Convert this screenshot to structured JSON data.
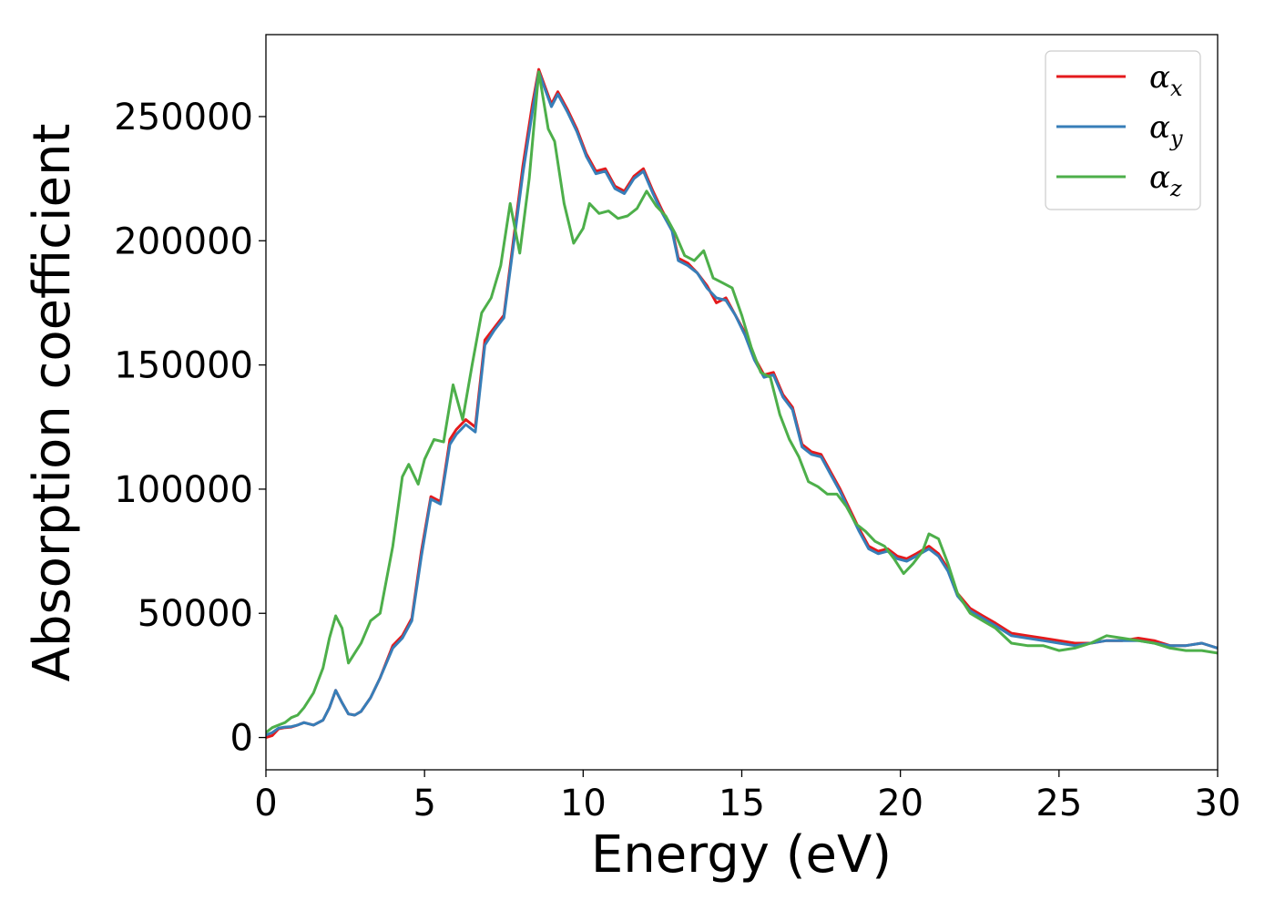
{
  "chart_data": {
    "type": "line",
    "xlabel": "Energy (eV)",
    "ylabel": "Absorption coefficient",
    "xlim": [
      0,
      30
    ],
    "ylim": [
      -13000,
      283000
    ],
    "xticks": [
      0,
      5,
      10,
      15,
      20,
      25,
      30
    ],
    "xtick_labels": [
      "0",
      "5",
      "10",
      "15",
      "20",
      "25",
      "30"
    ],
    "yticks": [
      0,
      50000,
      100000,
      150000,
      200000,
      250000
    ],
    "ytick_labels": [
      "0",
      "50000",
      "100000",
      "150000",
      "200000",
      "250000"
    ],
    "grid": false,
    "legend_position": "top-right",
    "series": [
      {
        "name": "α",
        "subscript": "x",
        "color": "#e41a1c",
        "x": [
          0,
          0.2,
          0.4,
          0.6,
          0.8,
          1.0,
          1.2,
          1.5,
          1.8,
          2.0,
          2.2,
          2.4,
          2.6,
          2.8,
          3.0,
          3.3,
          3.6,
          4.0,
          4.3,
          4.6,
          4.9,
          5.2,
          5.5,
          5.8,
          6.0,
          6.3,
          6.6,
          6.9,
          7.2,
          7.5,
          7.8,
          8.1,
          8.4,
          8.6,
          8.8,
          9.0,
          9.2,
          9.5,
          9.8,
          10.1,
          10.4,
          10.7,
          11.0,
          11.3,
          11.6,
          11.9,
          12.2,
          12.5,
          12.8,
          13.0,
          13.3,
          13.6,
          13.9,
          14.2,
          14.5,
          14.8,
          15.1,
          15.4,
          15.7,
          16.0,
          16.3,
          16.6,
          16.9,
          17.2,
          17.5,
          17.8,
          18.1,
          18.4,
          18.7,
          19.0,
          19.3,
          19.6,
          19.9,
          20.2,
          20.5,
          20.9,
          21.2,
          21.5,
          21.8,
          22.2,
          22.6,
          23.0,
          23.5,
          24.0,
          24.5,
          25.0,
          25.5,
          26.0,
          26.5,
          27.0,
          27.5,
          28.0,
          28.5,
          29.0,
          29.5,
          30.0
        ],
        "y": [
          0,
          800,
          3500,
          4000,
          4200,
          5000,
          6000,
          5000,
          7000,
          12000,
          19000,
          14000,
          9500,
          9000,
          10500,
          16000,
          24000,
          37000,
          41000,
          48000,
          75000,
          97000,
          95000,
          120000,
          124000,
          128000,
          125000,
          160000,
          165000,
          170000,
          200000,
          230000,
          255000,
          269000,
          262000,
          255000,
          260000,
          253000,
          245000,
          235000,
          228000,
          229000,
          222000,
          220000,
          226000,
          229000,
          220000,
          212000,
          205000,
          193000,
          191000,
          187000,
          182000,
          175000,
          177000,
          170000,
          163000,
          153000,
          146000,
          147000,
          138000,
          133000,
          118000,
          115000,
          114000,
          107000,
          100000,
          92000,
          84000,
          77000,
          75000,
          76000,
          73000,
          72000,
          74000,
          77000,
          74000,
          68000,
          58000,
          52000,
          49000,
          46000,
          42000,
          41000,
          40000,
          39000,
          38000,
          38000,
          39000,
          39000,
          40000,
          39000,
          37000,
          37000,
          38000,
          36000
        ]
      },
      {
        "name": "α",
        "subscript": "y",
        "color": "#377eb8",
        "x": [
          0,
          0.2,
          0.4,
          0.6,
          0.8,
          1.0,
          1.2,
          1.5,
          1.8,
          2.0,
          2.2,
          2.4,
          2.6,
          2.8,
          3.0,
          3.3,
          3.6,
          4.0,
          4.3,
          4.6,
          4.9,
          5.2,
          5.5,
          5.8,
          6.0,
          6.3,
          6.6,
          6.9,
          7.2,
          7.5,
          7.8,
          8.1,
          8.4,
          8.6,
          8.8,
          9.0,
          9.2,
          9.5,
          9.8,
          10.1,
          10.4,
          10.7,
          11.0,
          11.3,
          11.6,
          11.9,
          12.2,
          12.5,
          12.8,
          13.0,
          13.3,
          13.6,
          13.9,
          14.2,
          14.5,
          14.8,
          15.1,
          15.4,
          15.7,
          16.0,
          16.3,
          16.6,
          16.9,
          17.2,
          17.5,
          17.8,
          18.1,
          18.4,
          18.7,
          19.0,
          19.3,
          19.6,
          19.9,
          20.2,
          20.5,
          20.9,
          21.2,
          21.5,
          21.8,
          22.2,
          22.6,
          23.0,
          23.5,
          24.0,
          24.5,
          25.0,
          25.5,
          26.0,
          26.5,
          27.0,
          27.5,
          28.0,
          28.5,
          29.0,
          29.5,
          30.0
        ],
        "y": [
          1000,
          2000,
          3800,
          4200,
          4400,
          5000,
          6000,
          5000,
          7000,
          12000,
          19000,
          14000,
          9500,
          9000,
          10500,
          16000,
          24000,
          36000,
          40000,
          47000,
          73000,
          96000,
          94000,
          118000,
          122000,
          126000,
          123000,
          158000,
          164000,
          169000,
          198000,
          227000,
          252000,
          268000,
          261000,
          254000,
          259000,
          252000,
          244000,
          234000,
          227000,
          228000,
          221000,
          219000,
          225000,
          228000,
          219000,
          211000,
          204000,
          192000,
          190000,
          187000,
          181000,
          177000,
          176000,
          170000,
          162000,
          152000,
          145000,
          146000,
          137000,
          132000,
          117000,
          114000,
          113000,
          106000,
          99000,
          91000,
          83000,
          76000,
          74000,
          75000,
          72000,
          71000,
          73000,
          76000,
          73000,
          67000,
          57000,
          51000,
          48000,
          45000,
          41000,
          40000,
          39000,
          38000,
          37000,
          38000,
          39000,
          39000,
          39000,
          38000,
          37000,
          37000,
          38000,
          36000
        ]
      },
      {
        "name": "α",
        "subscript": "z",
        "color": "#4daf4a",
        "x": [
          0,
          0.2,
          0.4,
          0.6,
          0.8,
          1.0,
          1.2,
          1.5,
          1.8,
          2.0,
          2.2,
          2.4,
          2.6,
          2.8,
          3.0,
          3.3,
          3.6,
          4.0,
          4.3,
          4.5,
          4.8,
          5.0,
          5.3,
          5.6,
          5.9,
          6.2,
          6.5,
          6.8,
          7.1,
          7.4,
          7.7,
          8.0,
          8.3,
          8.6,
          8.9,
          9.1,
          9.4,
          9.7,
          10.0,
          10.2,
          10.5,
          10.8,
          11.1,
          11.4,
          11.7,
          12.0,
          12.3,
          12.6,
          12.9,
          13.2,
          13.5,
          13.8,
          14.1,
          14.4,
          14.7,
          15.0,
          15.3,
          15.6,
          15.9,
          16.2,
          16.5,
          16.8,
          17.1,
          17.4,
          17.7,
          18.0,
          18.3,
          18.6,
          18.9,
          19.2,
          19.5,
          19.8,
          20.1,
          20.4,
          20.7,
          20.9,
          21.2,
          21.5,
          21.8,
          22.2,
          22.6,
          23.0,
          23.5,
          24.0,
          24.5,
          25.0,
          25.5,
          26.0,
          26.5,
          27.0,
          27.5,
          28.0,
          28.5,
          29.0,
          29.5,
          30.0
        ],
        "y": [
          2000,
          4000,
          5000,
          6000,
          8000,
          9000,
          12000,
          18000,
          28000,
          40000,
          49000,
          44000,
          30000,
          34000,
          38000,
          47000,
          50000,
          77000,
          105000,
          110000,
          102000,
          112000,
          120000,
          119000,
          142000,
          128000,
          150000,
          171000,
          177000,
          190000,
          215000,
          195000,
          225000,
          268000,
          245000,
          240000,
          215000,
          199000,
          205000,
          215000,
          211000,
          212000,
          209000,
          210000,
          213000,
          220000,
          214000,
          210000,
          203000,
          194000,
          192000,
          196000,
          185000,
          183000,
          181000,
          170000,
          157000,
          147000,
          145000,
          130000,
          120000,
          113000,
          103000,
          101000,
          98000,
          98000,
          93000,
          86000,
          83000,
          79000,
          77000,
          72000,
          66000,
          70000,
          75000,
          82000,
          80000,
          70000,
          58000,
          50000,
          47000,
          44000,
          38000,
          37000,
          37000,
          35000,
          36000,
          38000,
          41000,
          40000,
          39000,
          38000,
          36000,
          35000,
          35000,
          34000
        ]
      }
    ]
  }
}
